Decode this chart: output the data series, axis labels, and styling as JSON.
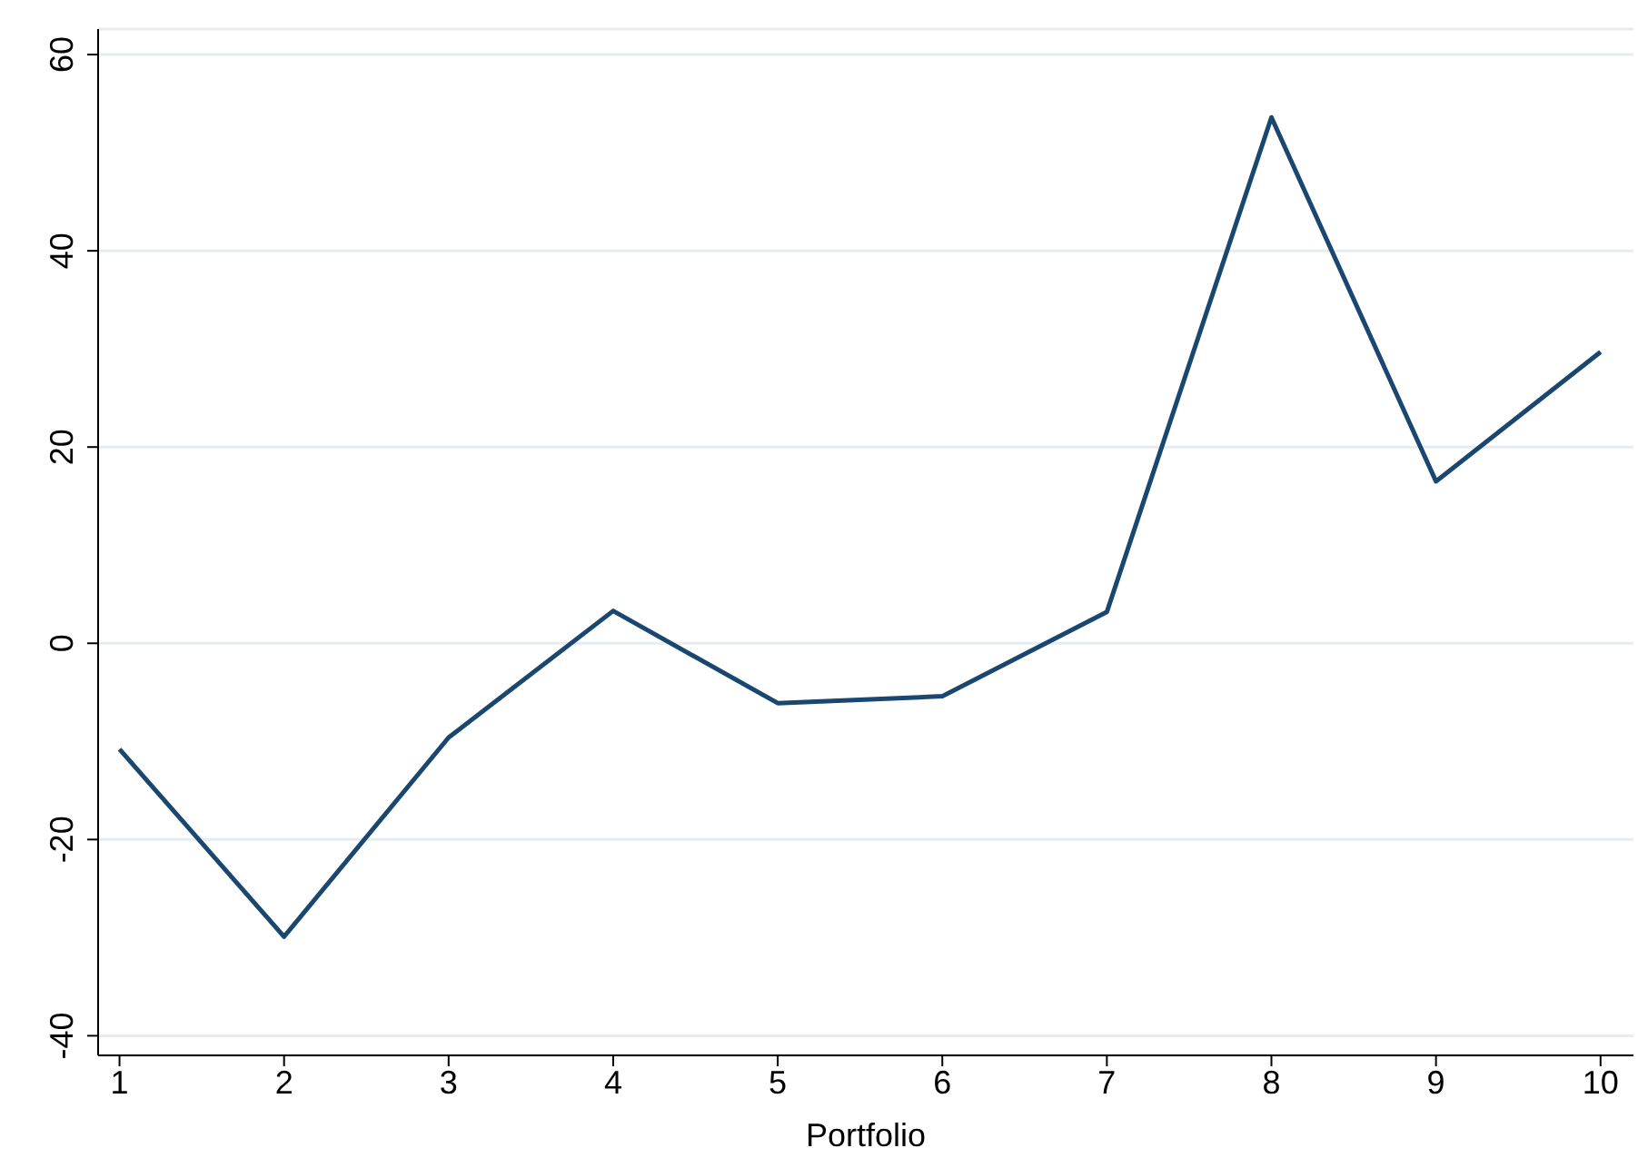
{
  "chart_data": {
    "type": "line",
    "xlabel": "Portfolio",
    "x": [
      1,
      2,
      3,
      4,
      5,
      6,
      7,
      8,
      9,
      10
    ],
    "series": [
      {
        "color": "#1a476f",
        "values": [
          -10.8,
          -29.9,
          -9.6,
          3.3,
          -6.1,
          -5.4,
          3.2,
          53.6,
          16.5,
          29.7
        ]
      }
    ],
    "xlim": [
      0.87,
      10.2
    ],
    "xticks": [
      1,
      2,
      3,
      4,
      5,
      6,
      7,
      8,
      9,
      10
    ],
    "ylim": [
      -42,
      62.6
    ],
    "yticks": [
      -40,
      -20,
      0,
      20,
      40,
      60
    ],
    "grid": "y",
    "marker": "none",
    "line_style": "solid"
  }
}
